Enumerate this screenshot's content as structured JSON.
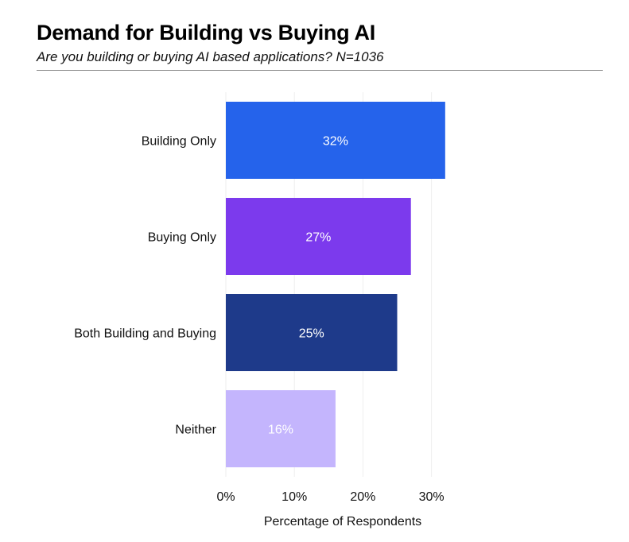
{
  "header": {
    "title": "Demand for Building vs Buying AI",
    "subtitle": "Are you building or buying AI based applications? N=1036"
  },
  "chart_data": {
    "type": "bar",
    "orientation": "horizontal",
    "title": "Demand for Building vs Buying AI",
    "subtitle": "Are you building or buying AI based applications? N=1036",
    "categories": [
      "Building Only",
      "Buying Only",
      "Both Building and Buying",
      "Neither"
    ],
    "values": [
      32,
      27,
      25,
      16
    ],
    "data_labels": [
      "32%",
      "27%",
      "25%",
      "16%"
    ],
    "colors": [
      "#2563EB",
      "#7C3AED",
      "#1E3A8A",
      "#C4B5FD"
    ],
    "xlabel": "Percentage of Respondents",
    "ylabel": "",
    "xlim": [
      0,
      35
    ],
    "x_ticks": [
      0,
      10,
      20,
      30
    ],
    "x_tick_labels": [
      "0%",
      "10%",
      "20%",
      "30%"
    ],
    "grid": "vertical",
    "legend": "none"
  }
}
